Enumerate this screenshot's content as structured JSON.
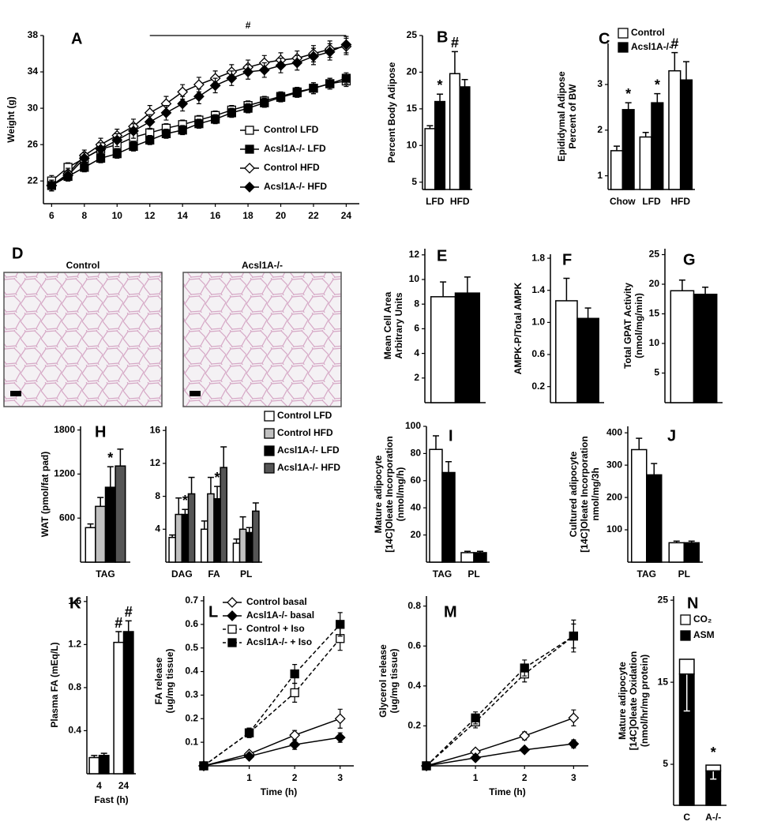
{
  "chart_data": [
    {
      "type": "line",
      "label": "A",
      "ylabel": [
        "Weight (g)"
      ],
      "x": [
        6,
        7,
        8,
        9,
        10,
        11,
        12,
        13,
        14,
        15,
        16,
        17,
        18,
        19,
        20,
        21,
        22,
        23,
        24
      ],
      "xlim": [
        5.5,
        24.8
      ],
      "xticks": [
        6,
        8,
        10,
        12,
        14,
        16,
        18,
        20,
        22,
        24
      ],
      "ylim": [
        19.5,
        38
      ],
      "yticks": [
        22,
        26,
        30,
        34,
        38
      ],
      "annotations": [
        {
          "text": "#",
          "x": [
            12,
            24
          ]
        }
      ],
      "series": [
        {
          "name": "Control LFD",
          "color": "#ffffff",
          "marker": "square",
          "values": [
            22,
            23.5,
            24.5,
            25.5,
            26,
            26.8,
            27.3,
            27.8,
            28.2,
            28.7,
            29.2,
            29.8,
            30.3,
            30.8,
            31.3,
            31.8,
            32.2,
            32.7,
            33
          ],
          "errors": [
            0.6,
            0.5,
            0.5,
            0.5,
            0.5,
            0.5,
            0.5,
            0.5,
            0.5,
            0.5,
            0.5,
            0.5,
            0.5,
            0.5,
            0.5,
            0.5,
            0.6,
            0.6,
            0.6
          ]
        },
        {
          "name": "Acsl1A-/- LFD",
          "color": "#000000",
          "marker": "square",
          "values": [
            21.5,
            22.5,
            23.5,
            24.5,
            25,
            25.8,
            26.5,
            27.2,
            27.6,
            28.3,
            28.8,
            29.5,
            30,
            30.6,
            31.2,
            31.7,
            32.2,
            32.7,
            33.3
          ],
          "errors": [
            0.6,
            0.5,
            0.5,
            0.5,
            0.5,
            0.5,
            0.5,
            0.5,
            0.5,
            0.5,
            0.5,
            0.5,
            0.5,
            0.5,
            0.5,
            0.5,
            0.6,
            0.6,
            0.6
          ]
        },
        {
          "name": "Control HFD",
          "color": "#ffffff",
          "marker": "diamond",
          "values": [
            21.5,
            22.8,
            24.8,
            26,
            27,
            28,
            29.5,
            30.5,
            31.8,
            32.6,
            33.3,
            34,
            34.5,
            35,
            35.3,
            35.5,
            36,
            36.5,
            36.8
          ],
          "errors": [
            0.6,
            0.6,
            0.6,
            0.7,
            0.7,
            0.8,
            0.8,
            0.8,
            0.8,
            0.8,
            0.8,
            0.8,
            0.8,
            0.8,
            0.8,
            0.8,
            0.9,
            0.9,
            0.9
          ]
        },
        {
          "name": "Acsl1A-/- HFD",
          "color": "#000000",
          "marker": "diamond",
          "values": [
            21.5,
            22.6,
            24.5,
            25.5,
            26.5,
            27.5,
            28.5,
            29.5,
            30.5,
            31.3,
            32.5,
            33.3,
            34,
            34.2,
            34.7,
            35,
            35.7,
            36.2,
            37
          ],
          "errors": [
            0.6,
            0.6,
            0.6,
            0.7,
            0.7,
            0.8,
            0.8,
            0.8,
            0.8,
            0.8,
            0.8,
            0.8,
            0.8,
            0.8,
            0.8,
            0.8,
            0.9,
            0.9,
            0.9
          ]
        }
      ]
    },
    {
      "type": "bar",
      "label": "B",
      "ylabel": [
        "Percent Body Adipose"
      ],
      "categories": [
        "LFD",
        "HFD"
      ],
      "ylim": [
        4,
        25
      ],
      "yticks": [
        5,
        10,
        15,
        20,
        25
      ],
      "series": [
        {
          "color": "#ffffff",
          "values": [
            12.3,
            19.8
          ],
          "errors": [
            0.4,
            3
          ],
          "annotations": [
            null,
            "#"
          ]
        },
        {
          "color": "#000000",
          "values": [
            16,
            18
          ],
          "errors": [
            1,
            1
          ],
          "annotations": [
            "*",
            null
          ]
        }
      ]
    },
    {
      "type": "bar",
      "label": "C",
      "ylabel": [
        "Epididymal Adipose",
        "Percent of BW"
      ],
      "categories": [
        "Chow",
        "LFD",
        "HFD"
      ],
      "ylim": [
        0.7,
        3.9
      ],
      "yticks": [
        1,
        2,
        3
      ],
      "series": [
        {
          "name": "Control",
          "color": "#ffffff",
          "values": [
            1.55,
            1.85,
            3.3
          ],
          "errors": [
            0.1,
            0.1,
            0.4
          ],
          "annotations": [
            null,
            null,
            "#"
          ]
        },
        {
          "name": "Acsl1A-/-",
          "color": "#000000",
          "values": [
            2.45,
            2.6,
            3.1
          ],
          "errors": [
            0.15,
            0.2,
            0.4
          ],
          "annotations": [
            "*",
            "*",
            null
          ]
        }
      ]
    },
    {
      "type": "image",
      "label": "D",
      "panels": [
        "Control",
        "Acsl1A-/-"
      ]
    },
    {
      "type": "bar",
      "label": "E",
      "ylabel": [
        "Mean Cell Area",
        "Arbitrary Units"
      ],
      "categories": [
        null
      ],
      "ylim": [
        0,
        12.5
      ],
      "yticks": [
        2,
        4,
        6,
        8,
        10,
        12
      ],
      "series": [
        {
          "color": "#ffffff",
          "values": [
            8.6
          ],
          "errors": [
            1.2
          ]
        },
        {
          "color": "#000000",
          "values": [
            8.9
          ],
          "errors": [
            1.3
          ]
        }
      ]
    },
    {
      "type": "bar",
      "label": "F",
      "ylabel": [
        "AMPK-P/Total AMPK"
      ],
      "categories": [
        null
      ],
      "ylim": [
        0,
        1.85
      ],
      "yticks": [
        0.2,
        0.6,
        {
          "value": 1,
          "label": "1.0"
        },
        1.4,
        1.8
      ],
      "series": [
        {
          "color": "#ffffff",
          "values": [
            1.27
          ],
          "errors": [
            0.28
          ]
        },
        {
          "color": "#000000",
          "values": [
            1.05
          ],
          "errors": [
            0.13
          ]
        }
      ]
    },
    {
      "type": "bar",
      "label": "G",
      "ylabel": [
        "Total GPAT Activity",
        "(nmol/mg/min)"
      ],
      "categories": [
        null
      ],
      "ylim": [
        0,
        26
      ],
      "yticks": [
        5,
        10,
        15,
        20,
        25
      ],
      "series": [
        {
          "color": "#ffffff",
          "values": [
            18.9
          ],
          "errors": [
            1.8
          ]
        },
        {
          "color": "#000000",
          "values": [
            18.3
          ],
          "errors": [
            1.2
          ]
        }
      ]
    },
    {
      "type": "bar",
      "label": "H",
      "ylabel": [
        "WAT (pmol/fat pad)"
      ],
      "categories": [
        "TAG"
      ],
      "ylim": [
        0,
        1850
      ],
      "yticks": [
        600,
        1200,
        1800
      ],
      "series": [
        {
          "color": "#ffffff",
          "values": [
            470
          ],
          "errors": [
            50
          ]
        },
        {
          "color": "#c0c0c0",
          "values": [
            760
          ],
          "errors": [
            120
          ]
        },
        {
          "color": "#000000",
          "values": [
            1020
          ],
          "errors": [
            280
          ],
          "annotations": [
            "*"
          ]
        },
        {
          "color": "#555555",
          "values": [
            1310
          ],
          "errors": [
            230
          ]
        }
      ]
    },
    {
      "type": "bar",
      "categories": [
        "DAG",
        "FA",
        "PL"
      ],
      "ylim": [
        0,
        16.5
      ],
      "yticks": [
        4,
        8,
        12,
        16
      ],
      "series": [
        {
          "name": "Control LFD",
          "color": "#ffffff",
          "values": [
            3,
            4,
            2.3
          ],
          "errors": [
            0.3,
            1,
            0.5
          ]
        },
        {
          "name": "Control HFD",
          "color": "#c0c0c0",
          "values": [
            5.8,
            8.3,
            4
          ],
          "errors": [
            2,
            2,
            1.5
          ]
        },
        {
          "name": "Acsl1A-/- LFD",
          "color": "#000000",
          "values": [
            5.8,
            7.7,
            3.6
          ],
          "errors": [
            0.6,
            1.5,
            0.6
          ],
          "annotations": [
            "*",
            "*",
            null
          ]
        },
        {
          "name": "Acsl1A-/- HFD",
          "color": "#555555",
          "values": [
            8.3,
            11.5,
            6.2
          ],
          "errors": [
            2,
            2.5,
            1
          ]
        }
      ]
    },
    {
      "type": "bar",
      "label": "I",
      "ylabel": [
        "Mature adipocyte",
        "[14C]Oleate Incorporation",
        "(nmol/mg/h)"
      ],
      "categories": [
        "TAG",
        "PL"
      ],
      "ylim": [
        0,
        100
      ],
      "yticks": [
        20,
        40,
        60,
        80,
        100
      ],
      "series": [
        {
          "color": "#ffffff",
          "values": [
            83,
            7
          ],
          "errors": [
            10,
            1
          ]
        },
        {
          "color": "#000000",
          "values": [
            66,
            7
          ],
          "errors": [
            8,
            1
          ]
        }
      ]
    },
    {
      "type": "bar",
      "label": "J",
      "ylabel": [
        "Cultured adipocyte",
        "[14C]Oleate Incorporation",
        "nmol/mg/3h"
      ],
      "categories": [
        "TAG",
        "PL"
      ],
      "ylim": [
        0,
        420
      ],
      "yticks": [
        100,
        200,
        300,
        400
      ],
      "series": [
        {
          "color": "#ffffff",
          "values": [
            348,
            60
          ],
          "errors": [
            35,
            5
          ]
        },
        {
          "color": "#000000",
          "values": [
            270,
            60
          ],
          "errors": [
            35,
            5
          ]
        }
      ]
    },
    {
      "type": "bar",
      "label": "K",
      "ylabel": [
        "Plasma FA (mEq/L)"
      ],
      "xlabel": "Fast (h)",
      "categories": [
        "4",
        "24"
      ],
      "ylim": [
        0,
        1.65
      ],
      "yticks": [
        0.4,
        0.8,
        1.2,
        1.6
      ],
      "series": [
        {
          "color": "#ffffff",
          "values": [
            0.15,
            1.22
          ],
          "errors": [
            0.02,
            0.1
          ],
          "annotations": [
            null,
            "#"
          ]
        },
        {
          "color": "#000000",
          "values": [
            0.17,
            1.32
          ],
          "errors": [
            0.02,
            0.1
          ],
          "annotations": [
            null,
            "#"
          ]
        }
      ]
    },
    {
      "type": "line",
      "label": "L",
      "ylabel": [
        "FA release",
        "(ug/mg tissue)"
      ],
      "xlabel": "Time (h)",
      "x": [
        0,
        1,
        2,
        3
      ],
      "xlim": [
        0,
        3.3
      ],
      "xticks": [
        1,
        2,
        3
      ],
      "ylim": [
        0,
        0.72
      ],
      "yticks": [
        0.1,
        0.2,
        0.3,
        0.4,
        0.5,
        0.6,
        0.7
      ],
      "series": [
        {
          "name": "Control basal",
          "color": "#ffffff",
          "marker": "diamond",
          "dash": false,
          "values": [
            0,
            0.05,
            0.13,
            0.2
          ],
          "errors": [
            0,
            0.01,
            0.02,
            0.04
          ]
        },
        {
          "name": "Acsl1A-/- basal",
          "color": "#000000",
          "marker": "diamond",
          "dash": false,
          "values": [
            0,
            0.04,
            0.09,
            0.12
          ],
          "errors": [
            0,
            0.01,
            0.02,
            0.02
          ]
        },
        {
          "name": "Control + Iso",
          "color": "#ffffff",
          "marker": "square",
          "dash": true,
          "values": [
            0,
            0.14,
            0.31,
            0.54
          ],
          "errors": [
            0,
            0.02,
            0.04,
            0.05
          ]
        },
        {
          "name": "Acsl1A-/- + Iso",
          "color": "#000000",
          "marker": "square",
          "dash": true,
          "values": [
            0,
            0.14,
            0.39,
            0.6
          ],
          "errors": [
            0,
            0.02,
            0.04,
            0.05
          ]
        }
      ]
    },
    {
      "type": "line",
      "label": "M",
      "ylabel": [
        "Glycerol release",
        "(ug/mg tissue)"
      ],
      "xlabel": "Time (h)",
      "x": [
        0,
        1,
        2,
        3
      ],
      "xlim": [
        0,
        3.3
      ],
      "xticks": [
        1,
        2,
        3
      ],
      "ylim": [
        0,
        0.85
      ],
      "yticks": [
        0.2,
        0.4,
        0.6,
        0.8
      ],
      "series": [
        {
          "color": "#ffffff",
          "marker": "diamond",
          "dash": false,
          "values": [
            0,
            0.07,
            0.15,
            0.24
          ],
          "errors": [
            0,
            0.01,
            0.02,
            0.04
          ]
        },
        {
          "color": "#000000",
          "marker": "diamond",
          "dash": false,
          "values": [
            0,
            0.04,
            0.08,
            0.11
          ],
          "errors": [
            0,
            0.01,
            0.01,
            0.02
          ]
        },
        {
          "color": "#ffffff",
          "marker": "square",
          "dash": true,
          "values": [
            0,
            0.22,
            0.46,
            0.65
          ],
          "errors": [
            0,
            0.03,
            0.04,
            0.06
          ]
        },
        {
          "color": "#000000",
          "marker": "square",
          "dash": true,
          "values": [
            0,
            0.24,
            0.49,
            0.65
          ],
          "errors": [
            0,
            0.03,
            0.04,
            0.08
          ]
        }
      ]
    },
    {
      "type": "stacked-bar",
      "label": "N",
      "ylabel": [
        "Mature adipocyte",
        "[14C]Oleate Oxidation",
        "(nmol/hr/mg protein)"
      ],
      "categories": [
        "C",
        "A-/-"
      ],
      "ylim": [
        0,
        25.5
      ],
      "yticks": [
        5,
        15,
        25
      ],
      "series": [
        {
          "name": "CO₂",
          "color": "#ffffff",
          "values": [
            1.8,
            0.7
          ]
        },
        {
          "name": "ASM",
          "color": "#000000",
          "values": [
            16,
            4.2
          ],
          "errors": [
            4.5,
            1
          ],
          "annotations": [
            null,
            "*"
          ]
        }
      ]
    }
  ]
}
